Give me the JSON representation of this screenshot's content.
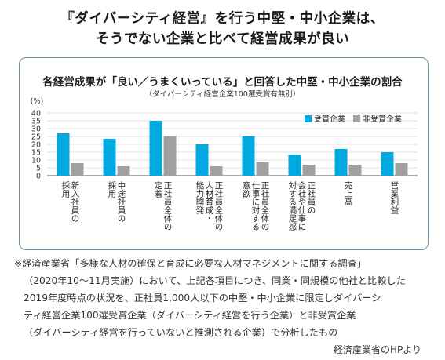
{
  "headline": {
    "line1": "『ダイバーシティ経営』を行う中堅・中小企業は、",
    "line2": "そうでない企業と比べて経営成果が良い"
  },
  "chart_data": {
    "type": "bar",
    "title": "各経営成果が「良い／うまくいっている」と回答した中堅・中小企業の割合",
    "subtitle": "（ダイバーシティ経営企業100選受賞有無別）",
    "ylabel": "(%)",
    "ylim": [
      0,
      40
    ],
    "yticks": [
      0,
      5,
      10,
      15,
      20,
      25,
      30,
      35,
      40
    ],
    "grid": true,
    "legend_position": "top-right",
    "categories": [
      [
        "新入社員の",
        "採用"
      ],
      [
        "中途社員の",
        "採用"
      ],
      [
        "正社員全体の",
        "定着"
      ],
      [
        "正社員全体の",
        "人材育成・",
        "能力開発"
      ],
      [
        "正社員全体の",
        "仕事に対する",
        "意欲"
      ],
      [
        "正社員の",
        "会社や仕事に",
        "対する満足感"
      ],
      [
        "売上高"
      ],
      [
        "営業利益"
      ]
    ],
    "series": [
      {
        "name": "受賞企業",
        "color": "#00a9e0",
        "values": [
          27,
          23.5,
          35,
          20,
          25,
          13.5,
          17,
          15
        ]
      },
      {
        "name": "非受賞企業",
        "color": "#a0a0a0",
        "values": [
          8,
          6,
          25.5,
          6,
          8.5,
          7,
          7,
          8
        ]
      }
    ]
  },
  "note": {
    "lines": [
      "※経済産業省「多様な人材の確保と育成に必要な人材マネジメントに関する調査」",
      "（2020年10～11月実施）において、上記各項目につき、同業・同規模の他社と比較した",
      "2019年度時点の状況を、正社員1,000人以下の中堅・中小企業に限定しダイバーシ",
      "ティ経営企業100選受賞企業（ダイバーシティ経営を行う企業）と非受賞企業",
      "（ダイバーシティ経営を行っていないと推測される企業）で分析したもの"
    ]
  },
  "source": "経済産業省のHPより"
}
